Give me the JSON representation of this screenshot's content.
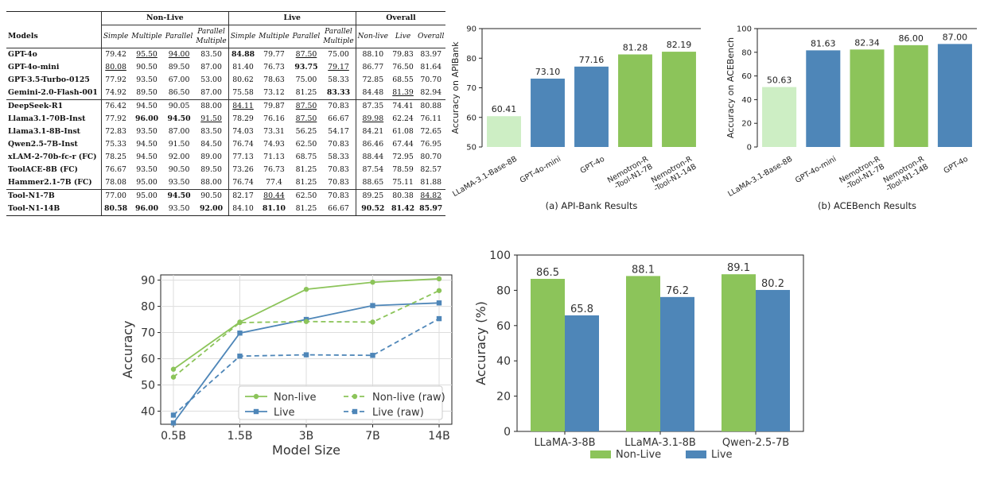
{
  "table": {
    "header": {
      "models": "Models",
      "groups": [
        "Non-Live",
        "Live",
        "Overall"
      ],
      "subcols": [
        [
          "Simple"
        ],
        [
          "Multiple"
        ],
        [
          "Parallel"
        ],
        [
          "Parallel",
          "Multiple"
        ],
        [
          "Simple"
        ],
        [
          "Multiple"
        ],
        [
          "Parallel"
        ],
        [
          "Parallel",
          "Multiple"
        ],
        [
          "Non-live"
        ],
        [
          "Live"
        ],
        [
          "Overall"
        ]
      ]
    },
    "sections": [
      [
        {
          "model": "GPT-4o",
          "cells": [
            {
              "v": "79.42"
            },
            {
              "v": "95.50",
              "u": true
            },
            {
              "v": "94.00",
              "u": true
            },
            {
              "v": "83.50"
            },
            {
              "v": "84.88",
              "b": true
            },
            {
              "v": "79.77"
            },
            {
              "v": "87.50",
              "u": true
            },
            {
              "v": "75.00"
            },
            {
              "v": "88.10"
            },
            {
              "v": "79.83"
            },
            {
              "v": "83.97"
            }
          ]
        },
        {
          "model": "GPT-4o-mini",
          "cells": [
            {
              "v": "80.08",
              "u": true
            },
            {
              "v": "90.50"
            },
            {
              "v": "89.50"
            },
            {
              "v": "87.00"
            },
            {
              "v": "81.40"
            },
            {
              "v": "76.73"
            },
            {
              "v": "93.75",
              "b": true
            },
            {
              "v": "79.17",
              "u": true
            },
            {
              "v": "86.77"
            },
            {
              "v": "76.50"
            },
            {
              "v": "81.64"
            }
          ]
        },
        {
          "model": "GPT-3.5-Turbo-0125",
          "cells": [
            {
              "v": "77.92"
            },
            {
              "v": "93.50"
            },
            {
              "v": "67.00"
            },
            {
              "v": "53.00"
            },
            {
              "v": "80.62"
            },
            {
              "v": "78.63"
            },
            {
              "v": "75.00"
            },
            {
              "v": "58.33"
            },
            {
              "v": "72.85"
            },
            {
              "v": "68.55"
            },
            {
              "v": "70.70"
            }
          ]
        },
        {
          "model": "Gemini-2.0-Flash-001",
          "cells": [
            {
              "v": "74.92"
            },
            {
              "v": "89.50"
            },
            {
              "v": "86.50"
            },
            {
              "v": "87.00"
            },
            {
              "v": "75.58"
            },
            {
              "v": "73.12"
            },
            {
              "v": "81.25"
            },
            {
              "v": "83.33",
              "b": true
            },
            {
              "v": "84.48"
            },
            {
              "v": "81.39",
              "u": true
            },
            {
              "v": "82.94"
            }
          ]
        }
      ],
      [
        {
          "model": "DeepSeek-R1",
          "cells": [
            {
              "v": "76.42"
            },
            {
              "v": "94.50"
            },
            {
              "v": "90.05"
            },
            {
              "v": "88.00"
            },
            {
              "v": "84.11",
              "u": true
            },
            {
              "v": "79.87"
            },
            {
              "v": "87.50",
              "u": true
            },
            {
              "v": "70.83"
            },
            {
              "v": "87.35"
            },
            {
              "v": "74.41"
            },
            {
              "v": "80.88"
            }
          ]
        },
        {
          "model": "Llama3.1-70B-Inst",
          "cells": [
            {
              "v": "77.92"
            },
            {
              "v": "96.00",
              "b": true
            },
            {
              "v": "94.50",
              "b": true
            },
            {
              "v": "91.50",
              "u": true
            },
            {
              "v": "78.29"
            },
            {
              "v": "76.16"
            },
            {
              "v": "87.50",
              "u": true
            },
            {
              "v": "66.67"
            },
            {
              "v": "89.98",
              "u": true
            },
            {
              "v": "62.24"
            },
            {
              "v": "76.11"
            }
          ]
        },
        {
          "model": "Llama3.1-8B-Inst",
          "cells": [
            {
              "v": "72.83"
            },
            {
              "v": "93.50"
            },
            {
              "v": "87.00"
            },
            {
              "v": "83.50"
            },
            {
              "v": "74.03"
            },
            {
              "v": "73.31"
            },
            {
              "v": "56.25"
            },
            {
              "v": "54.17"
            },
            {
              "v": "84.21"
            },
            {
              "v": "61.08"
            },
            {
              "v": "72.65"
            }
          ]
        },
        {
          "model": "Qwen2.5-7B-Inst",
          "cells": [
            {
              "v": "75.33"
            },
            {
              "v": "94.50"
            },
            {
              "v": "91.50"
            },
            {
              "v": "84.50"
            },
            {
              "v": "76.74"
            },
            {
              "v": "74.93"
            },
            {
              "v": "62.50"
            },
            {
              "v": "70.83"
            },
            {
              "v": "86.46"
            },
            {
              "v": "67.44"
            },
            {
              "v": "76.95"
            }
          ]
        },
        {
          "model": "xLAM-2-70b-fc-r (FC)",
          "cells": [
            {
              "v": "78.25"
            },
            {
              "v": "94.50"
            },
            {
              "v": "92.00"
            },
            {
              "v": "89.00"
            },
            {
              "v": "77.13"
            },
            {
              "v": "71.13"
            },
            {
              "v": "68.75"
            },
            {
              "v": "58.33"
            },
            {
              "v": "88.44"
            },
            {
              "v": "72.95"
            },
            {
              "v": "80.70"
            }
          ]
        },
        {
          "model": "ToolACE-8B (FC)",
          "cells": [
            {
              "v": "76.67"
            },
            {
              "v": "93.50"
            },
            {
              "v": "90.50"
            },
            {
              "v": "89.50"
            },
            {
              "v": "73.26"
            },
            {
              "v": "76.73"
            },
            {
              "v": "81.25"
            },
            {
              "v": "70.83"
            },
            {
              "v": "87.54"
            },
            {
              "v": "78.59"
            },
            {
              "v": "82.57"
            }
          ]
        },
        {
          "model": "Hammer2.1-7B (FC)",
          "cells": [
            {
              "v": "78.08"
            },
            {
              "v": "95.00"
            },
            {
              "v": "93.50"
            },
            {
              "v": "88.00"
            },
            {
              "v": "76.74"
            },
            {
              "v": "77.4"
            },
            {
              "v": "81.25"
            },
            {
              "v": "70.83"
            },
            {
              "v": "88.65"
            },
            {
              "v": "75.11"
            },
            {
              "v": "81.88"
            }
          ]
        }
      ],
      [
        {
          "model": "Tool-N1-7B",
          "cells": [
            {
              "v": "77.00"
            },
            {
              "v": "95.00"
            },
            {
              "v": "94.50",
              "b": true
            },
            {
              "v": "90.50"
            },
            {
              "v": "82.17"
            },
            {
              "v": "80.44",
              "u": true
            },
            {
              "v": "62.50"
            },
            {
              "v": "70.83"
            },
            {
              "v": "89.25"
            },
            {
              "v": "80.38"
            },
            {
              "v": "84.82",
              "u": true
            }
          ]
        },
        {
          "model": "Tool-N1-14B",
          "cells": [
            {
              "v": "80.58",
              "b": true
            },
            {
              "v": "96.00",
              "b": true
            },
            {
              "v": "93.50"
            },
            {
              "v": "92.00",
              "b": true
            },
            {
              "v": "84.10"
            },
            {
              "v": "81.10",
              "b": true
            },
            {
              "v": "81.25"
            },
            {
              "v": "66.67"
            },
            {
              "v": "90.52",
              "b": true
            },
            {
              "v": "81.42",
              "b": true
            },
            {
              "v": "85.97",
              "b": true
            }
          ]
        }
      ]
    ]
  },
  "chart_data": [
    {
      "type": "bar",
      "caption": "(a) API-Bank Results",
      "ylabel": "Accuracy on APIBank",
      "ylim": [
        50,
        90
      ],
      "yticks": [
        50,
        60,
        70,
        80,
        90
      ],
      "categories": [
        [
          "LLaMA-3.1-Base-8B"
        ],
        [
          "GPT-4o-mini"
        ],
        [
          "GPT-4o"
        ],
        [
          "Nemotron-R",
          "-Tool-N1-7B"
        ],
        [
          "Nemotron-R",
          "-Tool-N1-14B"
        ]
      ],
      "values": [
        60.41,
        73.1,
        77.16,
        81.28,
        82.19
      ],
      "labels": [
        "60.41",
        "73.10",
        "77.16",
        "81.28",
        "82.19"
      ],
      "colors": [
        "#cdeec4",
        "#4e86b8",
        "#4e86b8",
        "#8cc45a",
        "#8cc45a"
      ]
    },
    {
      "type": "bar",
      "caption": "(b) ACEBench Results",
      "ylabel": "Accuracy on ACEBench",
      "ylim": [
        0,
        100
      ],
      "yticks": [
        0,
        20,
        40,
        60,
        80,
        100
      ],
      "categories": [
        [
          "LLaMA-3.1-Base-8B"
        ],
        [
          "GPT-4o-mini"
        ],
        [
          "Nemotron-R",
          "-Tool-N1-7B"
        ],
        [
          "Nemotron-R",
          "-Tool-N1-14B"
        ],
        [
          "GPT-4o"
        ]
      ],
      "values": [
        50.63,
        81.63,
        82.34,
        86.0,
        87.0
      ],
      "labels": [
        "50.63",
        "81.63",
        "82.34",
        "86.00",
        "87.00"
      ],
      "colors": [
        "#cdeec4",
        "#4e86b8",
        "#8cc45a",
        "#8cc45a",
        "#4e86b8"
      ]
    },
    {
      "type": "line",
      "xlabel": "Model Size",
      "ylabel": "Accuracy",
      "ylim": [
        35,
        92
      ],
      "yticks": [
        40,
        50,
        60,
        70,
        80,
        90
      ],
      "categories": [
        "0.5B",
        "1.5B",
        "3B",
        "7B",
        "14B"
      ],
      "grid": true,
      "legend_position": "lower-right",
      "series": [
        {
          "name": "Non-live",
          "values": [
            56.0,
            74.0,
            86.5,
            89.2,
            90.5
          ],
          "color": "#8cc45a",
          "dash": false,
          "marker": "circle"
        },
        {
          "name": "Live",
          "values": [
            35.5,
            69.8,
            75.0,
            80.3,
            81.3
          ],
          "color": "#4e86b8",
          "dash": false,
          "marker": "square"
        },
        {
          "name": "Non-live (raw)",
          "values": [
            53.0,
            73.8,
            74.2,
            74.0,
            86.0
          ],
          "color": "#8cc45a",
          "dash": true,
          "marker": "circle"
        },
        {
          "name": "Live (raw)",
          "values": [
            38.5,
            61.0,
            61.5,
            61.3,
            75.3
          ],
          "color": "#4e86b8",
          "dash": true,
          "marker": "square"
        }
      ]
    },
    {
      "type": "bar",
      "ylabel": "Accuracy (%)",
      "ylim": [
        0,
        100
      ],
      "yticks": [
        0,
        20,
        40,
        60,
        80,
        100
      ],
      "categories": [
        "LLaMA-3-8B",
        "LLaMA-3.1-8B",
        "Qwen-2.5-7B"
      ],
      "legend_position": "bottom",
      "series": [
        {
          "name": "Non-Live",
          "values": [
            86.5,
            88.1,
            89.1
          ],
          "labels": [
            "86.5",
            "88.1",
            "89.1"
          ],
          "color": "#8cc45a"
        },
        {
          "name": "Live",
          "values": [
            65.8,
            76.2,
            80.2
          ],
          "labels": [
            "65.8",
            "76.2",
            "80.2"
          ],
          "color": "#4e86b8"
        }
      ]
    }
  ]
}
